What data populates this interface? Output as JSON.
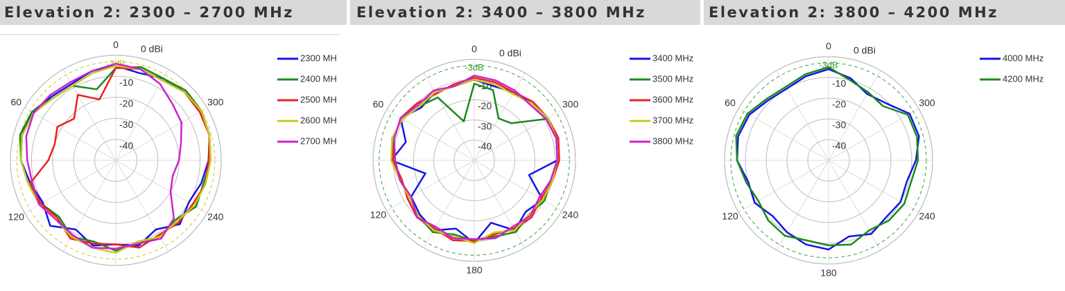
{
  "chart_data": [
    {
      "type": "polar",
      "title": "Elevation 2: 2300 – 2700 MHz",
      "x": [
        0,
        15,
        30,
        45,
        60,
        75,
        90,
        105,
        120,
        135,
        150,
        165,
        180,
        195,
        210,
        225,
        240,
        255,
        270,
        285,
        300,
        315,
        330,
        345
      ],
      "rlim": [
        -50,
        0
      ],
      "rticks": [
        {
          "value": 0,
          "label": "0 dBi"
        },
        -10,
        -20,
        -30,
        -40
      ],
      "thetaticks": [
        0,
        60,
        120,
        240,
        300
      ],
      "ref_circle": {
        "value": -3,
        "label": "-3dB",
        "color": "#c8c820"
      },
      "series": [
        {
          "name": "2300 MH",
          "color": "#1414e6",
          "values": [
            -5,
            -6,
            -8,
            -7,
            -4,
            -4,
            -5,
            -8,
            -10,
            -6,
            -12,
            -8,
            -10,
            -8,
            -12,
            -7,
            -10,
            -8,
            -6,
            -4,
            -3,
            -4,
            -5,
            -7
          ]
        },
        {
          "name": "2400 MH",
          "color": "#1a8a1a",
          "values": [
            -6,
            -15,
            -9,
            -8,
            -4,
            -3,
            -5,
            -7,
            -9,
            -12,
            -8,
            -10,
            -7,
            -9,
            -8,
            -10,
            -6,
            -7,
            -5,
            -4,
            -3,
            -3,
            -5,
            -4
          ]
        },
        {
          "name": "2500 MH",
          "color": "#ea2020",
          "values": [
            -6,
            -20,
            -14,
            -22,
            -18,
            -20,
            -18,
            -8,
            -9,
            -11,
            -7,
            -9,
            -10,
            -7,
            -9,
            -8,
            -8,
            -6,
            -6,
            -4,
            -4,
            -4,
            -6,
            -5
          ]
        },
        {
          "name": "2600 MH",
          "color": "#c8c820",
          "values": [
            -5,
            -7,
            -9,
            -8,
            -5,
            -4,
            -5,
            -7,
            -8,
            -10,
            -8,
            -7,
            -6,
            -10,
            -8,
            -9,
            -7,
            -6,
            -5,
            -4,
            -3,
            -4,
            -6,
            -5
          ]
        },
        {
          "name": "2700 MH",
          "color": "#cc22cc",
          "values": [
            -4,
            -6,
            -7,
            -6,
            -5,
            -6,
            -8,
            -9,
            -8,
            -10,
            -9,
            -7,
            -8,
            -9,
            -7,
            -11,
            -20,
            -22,
            -20,
            -18,
            -14,
            -12,
            -8,
            -5
          ]
        }
      ]
    },
    {
      "type": "polar",
      "title": "Elevation 2: 3400 – 3800 MHz",
      "x": [
        0,
        15,
        30,
        45,
        60,
        75,
        90,
        105,
        120,
        135,
        150,
        165,
        180,
        195,
        210,
        225,
        240,
        255,
        270,
        285,
        300,
        315,
        330,
        345
      ],
      "rlim": [
        -50,
        0
      ],
      "rticks": [
        {
          "value": 0,
          "label": "0 dBi"
        },
        -10,
        -20,
        -30,
        -40
      ],
      "thetaticks": [
        0,
        60,
        120,
        180,
        240,
        300
      ],
      "ref_circle": {
        "value": -3,
        "label": "-3dB",
        "color": "#3aa03a"
      },
      "series": [
        {
          "name": "3400 MHz",
          "color": "#1414e6",
          "values": [
            -10,
            -12,
            -11,
            -13,
            -8,
            -15,
            -9,
            -25,
            -14,
            -12,
            -10,
            -15,
            -9,
            -18,
            -10,
            -14,
            -11,
            -22,
            -9,
            -8,
            -8,
            -10,
            -11,
            -12
          ]
        },
        {
          "name": "3500 MHz",
          "color": "#1a8a1a",
          "values": [
            -12,
            -30,
            -14,
            -12,
            -9,
            -8,
            -10,
            -12,
            -13,
            -11,
            -9,
            -12,
            -10,
            -11,
            -9,
            -12,
            -10,
            -11,
            -9,
            -8,
            -9,
            -24,
            -26,
            -14
          ]
        },
        {
          "name": "3600 MHz",
          "color": "#ea2020",
          "values": [
            -9,
            -11,
            -12,
            -10,
            -8,
            -9,
            -10,
            -13,
            -12,
            -10,
            -11,
            -9,
            -10,
            -12,
            -11,
            -10,
            -12,
            -10,
            -8,
            -7,
            -8,
            -9,
            -11,
            -10
          ]
        },
        {
          "name": "3700 MHz",
          "color": "#c8c820",
          "values": [
            -10,
            -12,
            -11,
            -12,
            -9,
            -8,
            -9,
            -12,
            -13,
            -11,
            -10,
            -11,
            -9,
            -13,
            -10,
            -12,
            -11,
            -10,
            -9,
            -8,
            -8,
            -10,
            -12,
            -11
          ]
        },
        {
          "name": "3800 MHz",
          "color": "#cc22cc",
          "values": [
            -8,
            -12,
            -10,
            -11,
            -8,
            -9,
            -11,
            -12,
            -14,
            -10,
            -12,
            -10,
            -11,
            -10,
            -12,
            -11,
            -13,
            -11,
            -9,
            -8,
            -9,
            -11,
            -10,
            -9
          ]
        }
      ]
    },
    {
      "type": "polar",
      "title": "Elevation 2: 3800 – 4200 MHz",
      "x": [
        0,
        15,
        30,
        45,
        60,
        75,
        90,
        105,
        120,
        135,
        150,
        165,
        180,
        195,
        210,
        225,
        240,
        255,
        270,
        285,
        300,
        315,
        330,
        345
      ],
      "rlim": [
        -50,
        0
      ],
      "rticks": [
        {
          "value": 0,
          "label": "0 dBi"
        },
        -10,
        -20,
        -30,
        -40
      ],
      "thetaticks": [
        0,
        60,
        120,
        180,
        240,
        300
      ],
      "ref_circle": {
        "value": -3,
        "label": "-3dB",
        "color": "#3aa03a"
      },
      "series": [
        {
          "name": "4000 MHz",
          "color": "#1414e6",
          "values": [
            -6,
            -8,
            -10,
            -9,
            -6,
            -5,
            -6,
            -10,
            -9,
            -12,
            -10,
            -8,
            -7,
            -12,
            -9,
            -11,
            -10,
            -11,
            -8,
            -5,
            -5,
            -11,
            -13,
            -9
          ]
        },
        {
          "name": "4200 MHz",
          "color": "#1a8a1a",
          "values": [
            -5,
            -7,
            -9,
            -8,
            -5,
            -4,
            -6,
            -9,
            -11,
            -9,
            -8,
            -10,
            -9,
            -8,
            -11,
            -9,
            -8,
            -9,
            -7,
            -6,
            -6,
            -13,
            -12,
            -10
          ]
        }
      ]
    }
  ]
}
